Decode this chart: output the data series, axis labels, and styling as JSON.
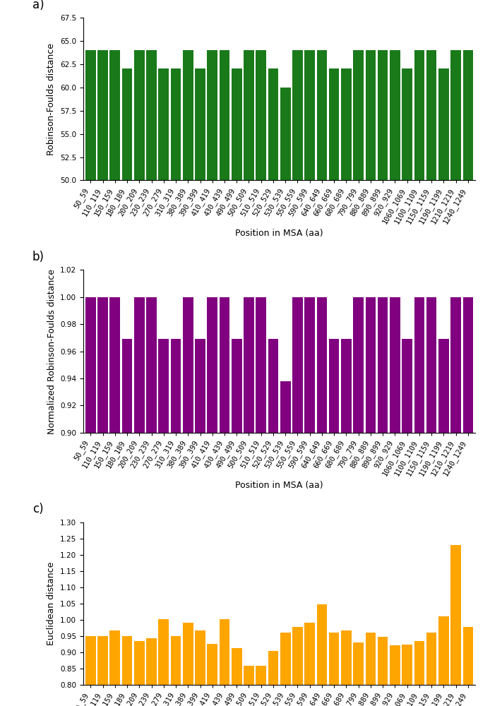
{
  "categories": [
    "50_59",
    "110_119",
    "150_159",
    "180_189",
    "200_209",
    "230_239",
    "270_279",
    "310_319",
    "380_389",
    "390_399",
    "410_419",
    "430_439",
    "490_499",
    "500_509",
    "510_519",
    "520_529",
    "530_539",
    "550_559",
    "590_599",
    "640_649",
    "660_669",
    "680_689",
    "790_799",
    "880_889",
    "890_899",
    "920_929",
    "1060_1069",
    "1100_1109",
    "1150_1159",
    "1190_1199",
    "1210_1219",
    "1240_1249"
  ],
  "rf_values": [
    64,
    64,
    64,
    62,
    64,
    64,
    62,
    62,
    64,
    62,
    64,
    64,
    62,
    64,
    64,
    62,
    60,
    64,
    64,
    64,
    62,
    62,
    64,
    64,
    64,
    64,
    62,
    64,
    64,
    62,
    64,
    64
  ],
  "nrf_values": [
    1.0,
    1.0,
    1.0,
    0.969,
    1.0,
    1.0,
    0.969,
    0.969,
    1.0,
    0.969,
    1.0,
    1.0,
    0.969,
    1.0,
    1.0,
    0.969,
    0.938,
    1.0,
    1.0,
    1.0,
    0.969,
    0.969,
    1.0,
    1.0,
    1.0,
    1.0,
    0.969,
    1.0,
    1.0,
    0.969,
    1.0,
    1.0
  ],
  "euc_values": [
    0.95,
    0.95,
    0.968,
    0.95,
    0.935,
    0.943,
    1.002,
    0.95,
    0.99,
    0.967,
    0.925,
    1.002,
    0.912,
    0.858,
    0.858,
    0.905,
    0.96,
    0.978,
    0.99,
    1.047,
    0.96,
    0.968,
    0.93,
    0.96,
    0.948,
    0.922,
    0.924,
    0.934,
    0.96,
    1.01,
    1.23,
    0.978
  ],
  "rf_color": "#1a7a1a",
  "nrf_color": "#800080",
  "euc_color": "#FFA500",
  "rf_ylim": [
    50.0,
    67.5
  ],
  "nrf_ylim": [
    0.9,
    1.02
  ],
  "euc_ylim": [
    0.8,
    1.3
  ],
  "rf_yticks": [
    50.0,
    52.5,
    55.0,
    57.5,
    60.0,
    62.5,
    65.0,
    67.5
  ],
  "nrf_yticks": [
    0.9,
    0.92,
    0.94,
    0.96,
    0.98,
    1.0,
    1.02
  ],
  "euc_yticks": [
    0.8,
    0.85,
    0.9,
    0.95,
    1.0,
    1.05,
    1.1,
    1.15,
    1.2,
    1.25,
    1.3
  ],
  "xlabel": "Position in MSA (aa)",
  "rf_ylabel": "Robinson-Foulds distance",
  "nrf_ylabel": "Normalized Robinson-Foulds distance",
  "euc_ylabel": "Euclidean distance",
  "label_a": "a)",
  "label_b": "b)",
  "label_c": "c)",
  "tick_fontsize": 7.5,
  "ylabel_fontsize": 9,
  "xlabel_fontsize": 9,
  "label_fontsize": 12,
  "bar_width": 0.85
}
